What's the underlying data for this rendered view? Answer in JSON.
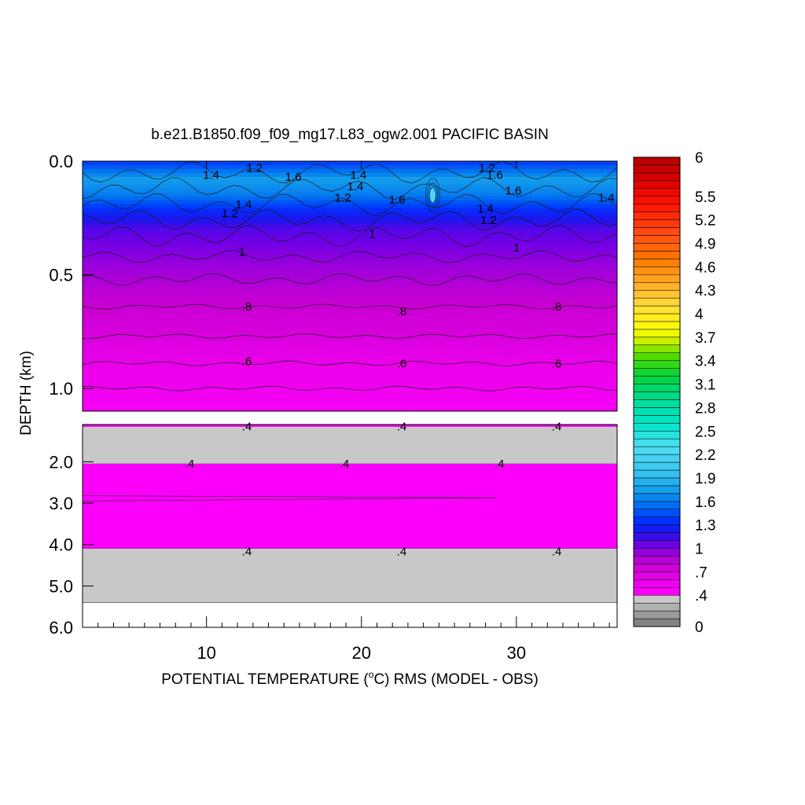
{
  "chart_data": {
    "type": "heatmap",
    "title": "b.e21.B1850.f09_f09_mg17.L83_ogw2.001 PACIFIC BASIN",
    "xlabel_prefix": "POTENTIAL TEMPERATURE (",
    "xlabel_degree": "o",
    "xlabel_suffix": "C) RMS (MODEL - OBS)",
    "ylabel": "DEPTH (km)",
    "xlim": [
      2,
      36.5
    ],
    "x_ticks": [
      "10",
      "20",
      "30"
    ],
    "x_tick_values": [
      10,
      20,
      30
    ],
    "upper_panel": {
      "ylim": [
        0.0,
        1.1
      ],
      "y_ticks": [
        "0.0",
        "0.5",
        "1.0"
      ],
      "y_tick_values": [
        0.0,
        0.5,
        1.0
      ]
    },
    "lower_panel": {
      "ylim": [
        1.1,
        6.0
      ],
      "y_ticks": [
        "2.0",
        "3.0",
        "4.0",
        "5.0",
        "6.0"
      ],
      "y_tick_values": [
        2.0,
        3.0,
        4.0,
        5.0,
        6.0
      ],
      "data_bottom_depth": 5.4
    },
    "depth_profile": [
      {
        "depth": 0.0,
        "value": 1.35
      },
      {
        "depth": 0.08,
        "value": 1.75
      },
      {
        "depth": 0.15,
        "value": 1.6
      },
      {
        "depth": 0.22,
        "value": 1.3
      },
      {
        "depth": 0.3,
        "value": 1.1
      },
      {
        "depth": 0.4,
        "value": 1.0
      },
      {
        "depth": 0.5,
        "value": 0.9
      },
      {
        "depth": 0.6,
        "value": 0.82
      },
      {
        "depth": 0.75,
        "value": 0.72
      },
      {
        "depth": 0.9,
        "value": 0.6
      },
      {
        "depth": 1.1,
        "value": 0.5
      }
    ],
    "deep_layers": [
      {
        "from": 1.1,
        "to": 2.05,
        "value": 0.35
      },
      {
        "from": 2.05,
        "to": 4.1,
        "value": 0.45
      },
      {
        "from": 4.1,
        "to": 5.4,
        "value": 0.35
      }
    ],
    "contour_labels_upper": [
      {
        "text": "1.4",
        "x": 10.3,
        "depth": 0.06
      },
      {
        "text": "1.2",
        "x": 13.1,
        "depth": 0.03
      },
      {
        "text": "1.6",
        "x": 15.6,
        "depth": 0.07
      },
      {
        "text": "1.4",
        "x": 19.8,
        "depth": 0.06
      },
      {
        "text": "1.4",
        "x": 19.6,
        "depth": 0.11
      },
      {
        "text": "1.2",
        "x": 18.8,
        "depth": 0.16
      },
      {
        "text": "1.6",
        "x": 22.3,
        "depth": 0.17
      },
      {
        "text": "1.2",
        "x": 28.1,
        "depth": 0.03
      },
      {
        "text": "1.6",
        "x": 28.6,
        "depth": 0.06
      },
      {
        "text": "1.6",
        "x": 29.8,
        "depth": 0.13
      },
      {
        "text": "1.4",
        "x": 28.0,
        "depth": 0.21
      },
      {
        "text": "1.2",
        "x": 28.2,
        "depth": 0.26
      },
      {
        "text": "1.4",
        "x": 12.4,
        "depth": 0.19
      },
      {
        "text": "1.2",
        "x": 11.5,
        "depth": 0.23
      },
      {
        "text": "1.4",
        "x": 35.8,
        "depth": 0.16
      },
      {
        "text": "1",
        "x": 20.7,
        "depth": 0.32
      },
      {
        "text": "1",
        "x": 12.3,
        "depth": 0.4
      },
      {
        "text": "1",
        "x": 30.0,
        "depth": 0.38
      },
      {
        "text": ".8",
        "x": 12.6,
        "depth": 0.64
      },
      {
        "text": ".8",
        "x": 22.6,
        "depth": 0.66
      },
      {
        "text": ".8",
        "x": 32.6,
        "depth": 0.64
      },
      {
        "text": ".6",
        "x": 12.6,
        "depth": 0.88
      },
      {
        "text": ".6",
        "x": 22.6,
        "depth": 0.89
      },
      {
        "text": ".6",
        "x": 32.6,
        "depth": 0.89
      }
    ],
    "contour_labels_lower": [
      {
        "text": ".4",
        "x": 12.6,
        "depth": 1.15
      },
      {
        "text": ".4",
        "x": 22.6,
        "depth": 1.15
      },
      {
        "text": ".4",
        "x": 32.6,
        "depth": 1.15
      },
      {
        "text": ".4",
        "x": 8.9,
        "depth": 2.05
      },
      {
        "text": ".4",
        "x": 18.9,
        "depth": 2.05
      },
      {
        "text": ".4",
        "x": 28.9,
        "depth": 2.05
      },
      {
        "text": ".4",
        "x": 12.6,
        "depth": 4.17
      },
      {
        "text": ".4",
        "x": 22.6,
        "depth": 4.17
      },
      {
        "text": ".4",
        "x": 32.6,
        "depth": 4.17
      }
    ],
    "colorbar": {
      "min": 0,
      "max": 6,
      "labels": [
        "6",
        "5.5",
        "5.2",
        "4.9",
        "4.6",
        "4.3",
        "4",
        "3.7",
        "3.4",
        "3.1",
        "2.8",
        "2.5",
        "2.2",
        "1.9",
        "1.6",
        "1.3",
        "1",
        ".7",
        ".4",
        "0"
      ],
      "label_values": [
        6,
        5.5,
        5.2,
        4.9,
        4.6,
        4.3,
        4,
        3.7,
        3.4,
        3.1,
        2.8,
        2.5,
        2.2,
        1.9,
        1.6,
        1.3,
        1,
        0.7,
        0.4,
        0
      ]
    }
  }
}
